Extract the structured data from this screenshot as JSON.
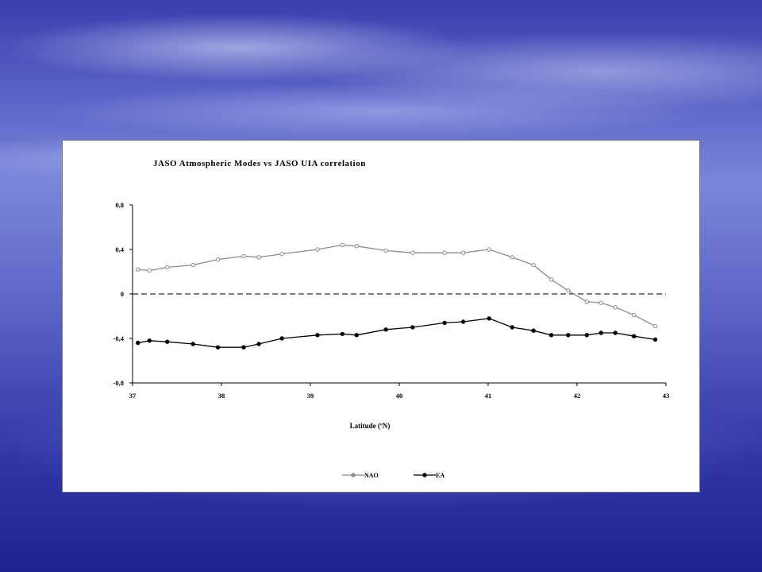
{
  "chart_data": {
    "type": "line",
    "title": "JASO Atmospheric Modes vs JASO UIA correlation",
    "xlabel": "Latitude (ºN)",
    "ylabel": "",
    "xlim": [
      37,
      43
    ],
    "ylim": [
      -0.8,
      0.8
    ],
    "x_ticks": [
      37,
      38,
      39,
      40,
      41,
      42,
      43
    ],
    "y_ticks": [
      0.8,
      0.4,
      0,
      -0.4,
      -0.8
    ],
    "x_tick_labels": [
      "37",
      "38",
      "39",
      "40",
      "41",
      "42",
      "43"
    ],
    "y_tick_labels": [
      "0,8",
      "0,4",
      "0",
      "-0,4",
      "-0,8"
    ],
    "reference_line": {
      "y": 0,
      "style": "dashed"
    },
    "legend_position": "bottom-center",
    "grid": false,
    "series": [
      {
        "name": "NAO",
        "color": "#8c8c8c",
        "marker": "circle-hollow",
        "x": [
          37.06,
          37.19,
          37.39,
          37.68,
          37.96,
          38.25,
          38.42,
          38.68,
          39.08,
          39.36,
          39.52,
          39.85,
          40.15,
          40.51,
          40.72,
          41.01,
          41.27,
          41.51,
          41.71,
          41.9,
          42.11,
          42.27,
          42.43,
          42.64,
          42.88
        ],
        "y": [
          0.22,
          0.21,
          0.24,
          0.26,
          0.31,
          0.34,
          0.33,
          0.36,
          0.4,
          0.44,
          0.43,
          0.39,
          0.37,
          0.37,
          0.37,
          0.4,
          0.33,
          0.26,
          0.13,
          0.03,
          -0.07,
          -0.08,
          -0.12,
          -0.19,
          -0.29
        ]
      },
      {
        "name": "EA",
        "color": "#000000",
        "marker": "circle-filled",
        "x": [
          37.06,
          37.19,
          37.39,
          37.68,
          37.96,
          38.25,
          38.42,
          38.68,
          39.08,
          39.36,
          39.52,
          39.85,
          40.15,
          40.51,
          40.72,
          41.01,
          41.27,
          41.51,
          41.71,
          41.9,
          42.11,
          42.27,
          42.43,
          42.64,
          42.88
        ],
        "y": [
          -0.44,
          -0.42,
          -0.43,
          -0.45,
          -0.48,
          -0.48,
          -0.45,
          -0.4,
          -0.37,
          -0.36,
          -0.37,
          -0.32,
          -0.3,
          -0.26,
          -0.25,
          -0.22,
          -0.3,
          -0.33,
          -0.37,
          -0.37,
          -0.37,
          -0.35,
          -0.35,
          -0.38,
          -0.41
        ]
      }
    ]
  }
}
